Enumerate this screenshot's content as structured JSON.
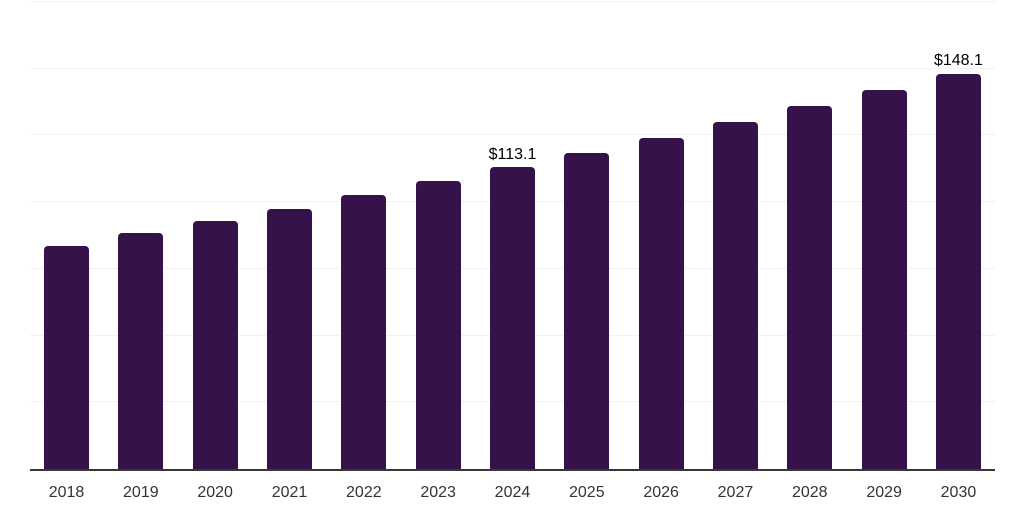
{
  "chart_data": {
    "type": "bar",
    "title": "",
    "xlabel": "",
    "ylabel": "",
    "categories": [
      "2018",
      "2019",
      "2020",
      "2021",
      "2022",
      "2023",
      "2024",
      "2025",
      "2026",
      "2027",
      "2028",
      "2029",
      "2030"
    ],
    "values": [
      83.7,
      88.4,
      93.0,
      97.5,
      102.6,
      107.9,
      113.1,
      118.6,
      124.2,
      130.0,
      136.1,
      142.0,
      148.1
    ],
    "bar_labels": [
      "",
      "",
      "",
      "",
      "",
      "",
      "$113.1",
      "",
      "",
      "",
      "",
      "",
      "$148.1"
    ],
    "ylim": [
      0,
      175
    ],
    "gridline_step": 25,
    "grid": "horizontal",
    "legend": "none",
    "colors": {
      "bar": "#35134a",
      "gridline": "#f1f1f1",
      "axis_line": "#383838",
      "tick_label": "#333333",
      "data_label": "#000000",
      "background": "#ffffff"
    }
  }
}
